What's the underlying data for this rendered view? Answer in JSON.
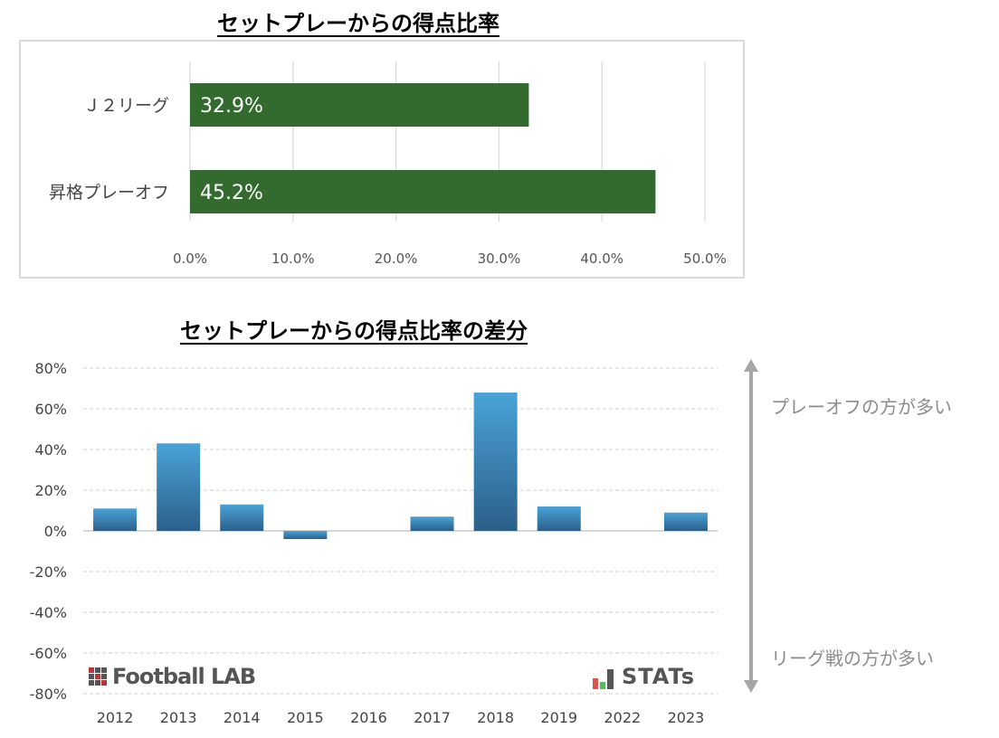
{
  "titles": {
    "chart1": "セットプレーからの得点比率",
    "chart2": "セットプレーからの得点比率の差分"
  },
  "annotations": {
    "top": "プレーオフの方が多い",
    "bottom": "リーグ戦の方が多い"
  },
  "logos": {
    "left": "Football LAB",
    "right": "STATs"
  },
  "colors": {
    "bar1": "#336b2e",
    "bar2_top": "#4aa3d8",
    "bar2_bottom": "#2c5f8a",
    "arrow": "#a6a6a6",
    "grid": "#cfcfcf"
  },
  "chart_data": [
    {
      "type": "bar",
      "orientation": "horizontal",
      "title": "セットプレーからの得点比率",
      "categories": [
        "Ｊ２リーグ",
        "昇格プレーオフ"
      ],
      "values": [
        32.9,
        45.2
      ],
      "data_labels": [
        "32.9%",
        "45.2%"
      ],
      "xlim": [
        0,
        50
      ],
      "xticks": [
        "0.0%",
        "10.0%",
        "20.0%",
        "30.0%",
        "40.0%",
        "50.0%"
      ],
      "grid": true
    },
    {
      "type": "bar",
      "title": "セットプレーからの得点比率の差分",
      "categories": [
        "2012",
        "2013",
        "2014",
        "2015",
        "2016",
        "2017",
        "2018",
        "2019",
        "2022",
        "2023"
      ],
      "values": [
        11,
        43,
        13,
        -4,
        0,
        7,
        68,
        12,
        0,
        9
      ],
      "ylim": [
        -80,
        80
      ],
      "yticks": [
        "80%",
        "60%",
        "40%",
        "20%",
        "0%",
        "-20%",
        "-40%",
        "-60%",
        "-80%"
      ],
      "grid": true
    }
  ]
}
